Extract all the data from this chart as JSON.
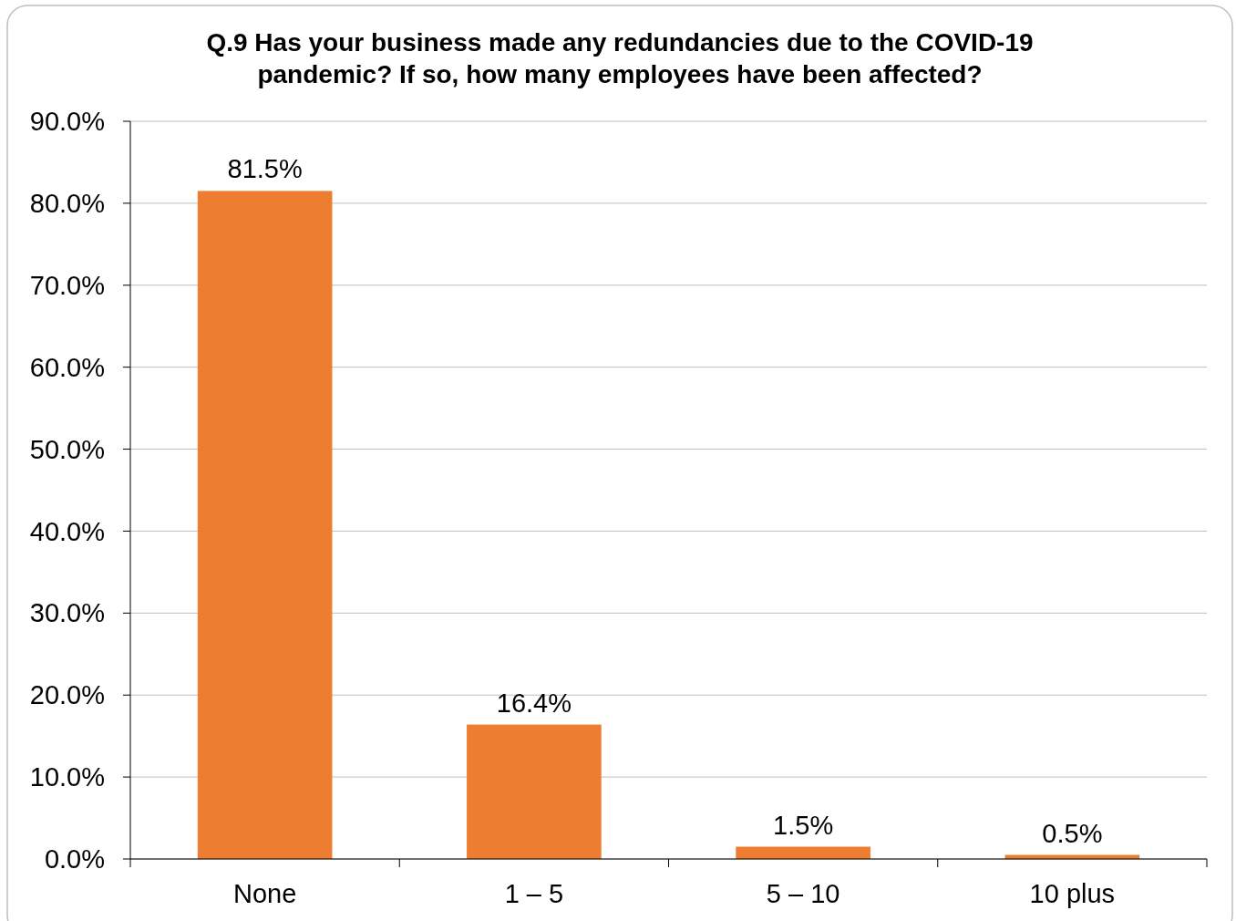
{
  "chart_data": {
    "type": "bar",
    "title": "Q.9 Has your business made any redundancies due to the COVID-19 pandemic? If so, how many employees have been affected?",
    "categories": [
      "None",
      "1 – 5",
      "5 – 10",
      "10 plus"
    ],
    "values": [
      81.5,
      16.4,
      1.5,
      0.5
    ],
    "value_labels": [
      "81.5%",
      "16.4%",
      "1.5%",
      "0.5%"
    ],
    "color": "#ed7d31",
    "ylim": [
      0,
      90
    ],
    "yticks": [
      {
        "value": 0,
        "label": "0.0%"
      },
      {
        "value": 10,
        "label": "10.0%"
      },
      {
        "value": 20,
        "label": "20.0%"
      },
      {
        "value": 30,
        "label": "30.0%"
      },
      {
        "value": 40,
        "label": "40.0%"
      },
      {
        "value": 50,
        "label": "50.0%"
      },
      {
        "value": 60,
        "label": "60.0%"
      },
      {
        "value": 70,
        "label": "70.0%"
      },
      {
        "value": 80,
        "label": "80.0%"
      },
      {
        "value": 90,
        "label": "90.0%"
      }
    ],
    "grid": "y"
  }
}
